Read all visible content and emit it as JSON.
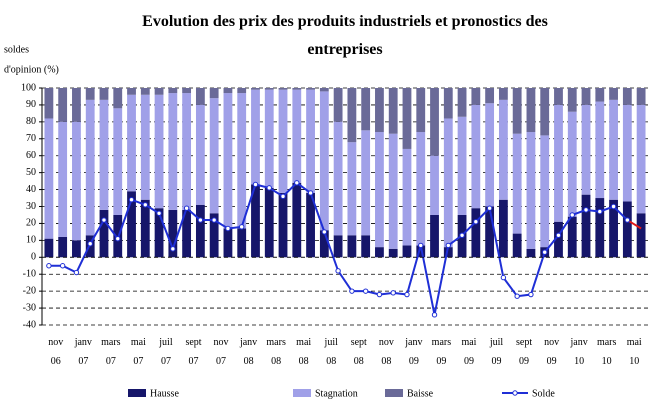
{
  "chart_data": {
    "type": "bar",
    "title": "Evolution des prix des produits industriels et pronostics des entreprises",
    "y_label": [
      "soldes",
      "d'opinion (%)"
    ],
    "categories": [
      "nov 06",
      null,
      "janv 07",
      null,
      "mars 07",
      null,
      "mai 07",
      null,
      "juil 07",
      null,
      "sept 07",
      null,
      "nov 07",
      null,
      "janv 08",
      null,
      "mars 08",
      null,
      "mai 08",
      null,
      "juil 08",
      null,
      "sept 08",
      null,
      "nov 08",
      null,
      "janv 09",
      null,
      "mars 09",
      null,
      "mai 09",
      null,
      "juil 09",
      null,
      "sept 09",
      null,
      "nov 09",
      null,
      "janv 10",
      null,
      "mars 10",
      null,
      "mai 10",
      null
    ],
    "series": [
      {
        "name": "Hausse",
        "color": "#16166a",
        "values": [
          11,
          12,
          10,
          13,
          28,
          25,
          39,
          34,
          29,
          28,
          28,
          31,
          26,
          17,
          17,
          43,
          41,
          38,
          44,
          38,
          16,
          13,
          13,
          13,
          6,
          5,
          7,
          7,
          25,
          6,
          25,
          29,
          30,
          34,
          14,
          5,
          6,
          21,
          24,
          37,
          35,
          34,
          33,
          26
        ]
      },
      {
        "name": "Stagnation",
        "color": "#a0a0e8",
        "values": [
          71,
          68,
          70,
          80,
          65,
          63,
          57,
          62,
          67,
          69,
          69,
          59,
          68,
          80,
          80,
          56,
          58,
          61,
          55,
          61,
          82,
          67,
          55,
          62,
          68,
          68,
          57,
          67,
          35,
          76,
          58,
          61,
          61,
          59,
          59,
          69,
          66,
          69,
          62,
          53,
          57,
          59,
          57,
          64
        ]
      },
      {
        "name": "Baisse",
        "color": "#6a6a98",
        "values": [
          18,
          20,
          20,
          7,
          7,
          12,
          4,
          4,
          4,
          3,
          3,
          10,
          6,
          3,
          3,
          1,
          1,
          1,
          1,
          1,
          2,
          20,
          32,
          25,
          26,
          27,
          36,
          26,
          40,
          18,
          17,
          10,
          9,
          7,
          27,
          26,
          28,
          10,
          14,
          10,
          8,
          7,
          10,
          10
        ]
      },
      {
        "name": "Solde",
        "type": "line",
        "color": "#1f2fd6",
        "forecast_color": "#e01818",
        "values": [
          -5,
          -5,
          -9,
          8,
          22,
          11,
          34,
          31,
          26,
          5,
          29,
          22,
          22,
          17,
          18,
          43,
          41,
          36,
          44,
          38,
          15,
          -8,
          -20,
          -20,
          -22,
          -21,
          -22,
          7,
          -34,
          7,
          13,
          21,
          29,
          -12,
          -23,
          -22,
          3,
          13,
          25,
          28,
          27,
          30,
          22,
          17
        ]
      }
    ],
    "ylim": [
      -40,
      100
    ],
    "yticks": [
      -40,
      -30,
      -20,
      -10,
      0,
      10,
      20,
      30,
      40,
      50,
      60,
      70,
      80,
      90,
      100
    ],
    "grid": true,
    "legend": "bottom"
  }
}
